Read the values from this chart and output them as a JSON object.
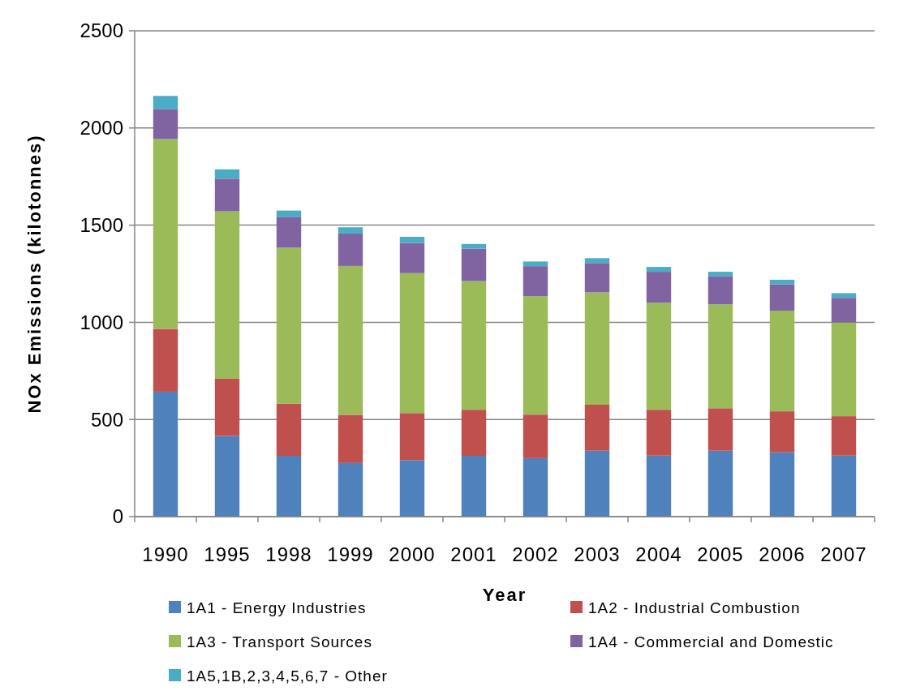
{
  "chart_data": {
    "type": "bar",
    "stacked": true,
    "xlabel": "Year",
    "ylabel": "NOx Emissions (kilotonnes)",
    "categories": [
      "1990",
      "1995",
      "1998",
      "1999",
      "2000",
      "2001",
      "2002",
      "2003",
      "2004",
      "2005",
      "2006",
      "2007"
    ],
    "series": [
      {
        "name": "1A1 - Energy Industries",
        "color": "#4f81bd",
        "values": [
          643,
          415,
          313,
          276,
          291,
          313,
          301,
          339,
          314,
          339,
          331,
          314
        ]
      },
      {
        "name": "1A2 - Industrial Combustion",
        "color": "#c0504d",
        "values": [
          323,
          295,
          269,
          248,
          242,
          237,
          224,
          237,
          236,
          219,
          211,
          203
        ]
      },
      {
        "name": "1A3 - Transport Sources",
        "color": "#9bbb59",
        "values": [
          977,
          861,
          802,
          766,
          720,
          662,
          609,
          578,
          551,
          535,
          518,
          482
        ]
      },
      {
        "name": "1A4 - Commercial and Domestic",
        "color": "#8064a2",
        "values": [
          155,
          168,
          159,
          167,
          155,
          167,
          155,
          151,
          159,
          143,
          135,
          127
        ]
      },
      {
        "name": "1A5,1B,2,3,4,5,6,7 - Other",
        "color": "#4bacc6",
        "values": [
          67,
          48,
          32,
          32,
          32,
          24,
          24,
          25,
          25,
          24,
          24,
          24
        ]
      }
    ],
    "ylim": [
      0,
      2500
    ],
    "yticks": [
      0,
      500,
      1000,
      1500,
      2000,
      2500
    ],
    "grid": "y",
    "legend": "bottom"
  }
}
